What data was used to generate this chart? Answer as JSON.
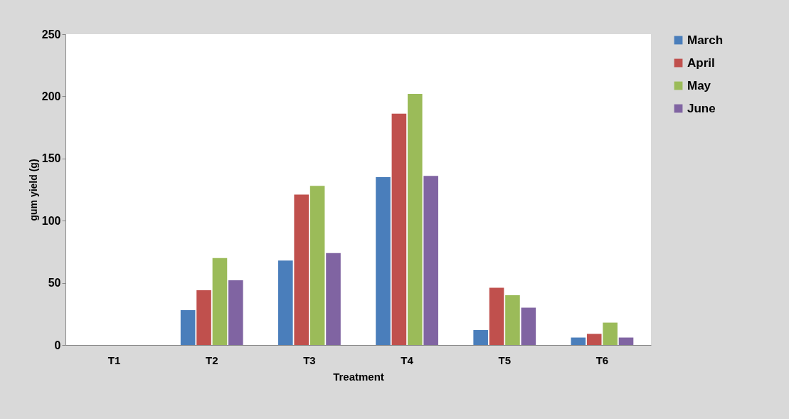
{
  "chart_data": {
    "type": "bar",
    "xlabel": "Treatment",
    "ylabel": "gum yield (g)",
    "categories": [
      "T1",
      "T2",
      "T3",
      "T4",
      "T5",
      "T6"
    ],
    "series": [
      {
        "name": "March",
        "color": "#4a7ebb",
        "values": [
          0,
          28,
          68,
          135,
          12,
          6
        ]
      },
      {
        "name": "April",
        "color": "#c0504d",
        "values": [
          0,
          44,
          121,
          186,
          46,
          9
        ]
      },
      {
        "name": "May",
        "color": "#9bbb59",
        "values": [
          0,
          70,
          128,
          202,
          40,
          18
        ]
      },
      {
        "name": "June",
        "color": "#8064a2",
        "values": [
          0,
          52,
          74,
          136,
          30,
          6
        ]
      }
    ],
    "ylim": [
      0,
      250
    ],
    "yticks": [
      0,
      50,
      100,
      150,
      200,
      250
    ],
    "grid": false,
    "legend": "right"
  }
}
